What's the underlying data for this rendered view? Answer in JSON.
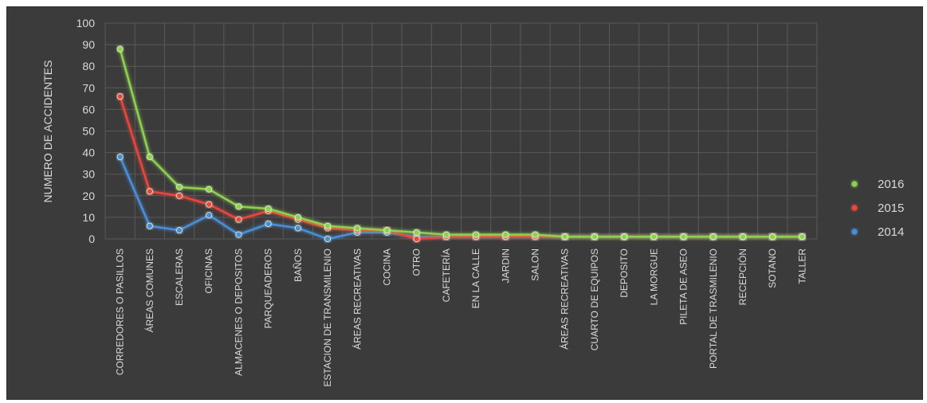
{
  "chart_data": {
    "type": "line",
    "title": "",
    "xlabel": "",
    "ylabel": "NUMERO DE ACCIDENTES",
    "ylim": [
      0,
      100
    ],
    "yticks": [
      0,
      10,
      20,
      30,
      40,
      50,
      60,
      70,
      80,
      90,
      100
    ],
    "grid": true,
    "legend_position": "right",
    "categories": [
      "CORREDORES O PASILLOS",
      "ÁREAS COMUNES",
      "ESCALERAS",
      "OFICINAS",
      "ALMACENES O DEPOSITOS",
      "PARQUEADEROS",
      "BAÑOS",
      "ESTACION DE TRANSMILENIO",
      "ÁREAS RECREATIVAS",
      "COCINA",
      "OTRO",
      "CAFETERÍA",
      "EN LA CALLE",
      "JARDIN",
      "SALON",
      "ÁREAS RECREATIVAS",
      "CUARTO DE EQUIPOS",
      "DEPOSITO",
      "LA MORGUE",
      "PILETA DE ASEO",
      "PORTAL DE TRASMILENIO",
      "RECEPCIÓN",
      "SOTANO",
      "TALLER"
    ],
    "series": [
      {
        "name": "2016",
        "color": "#8fd14f",
        "values": [
          88,
          38,
          24,
          23,
          15,
          14,
          10,
          6,
          5,
          4,
          3,
          2,
          2,
          2,
          2,
          1,
          1,
          1,
          1,
          1,
          1,
          1,
          1,
          1
        ]
      },
      {
        "name": "2015",
        "color": "#e8463c",
        "values": [
          66,
          22,
          20,
          16,
          9,
          13,
          9,
          5,
          4,
          4,
          0,
          1,
          1,
          1,
          1,
          1,
          1,
          1,
          1,
          1,
          1,
          1,
          1,
          1
        ]
      },
      {
        "name": "2014",
        "color": "#4a8fd8",
        "values": [
          38,
          6,
          4,
          11,
          2,
          7,
          5,
          0,
          3,
          3,
          1,
          1,
          1,
          1,
          1,
          1,
          1,
          1,
          1,
          1,
          1,
          1,
          1,
          1
        ]
      }
    ],
    "legend_order": [
      "2016",
      "2015",
      "2014"
    ]
  }
}
